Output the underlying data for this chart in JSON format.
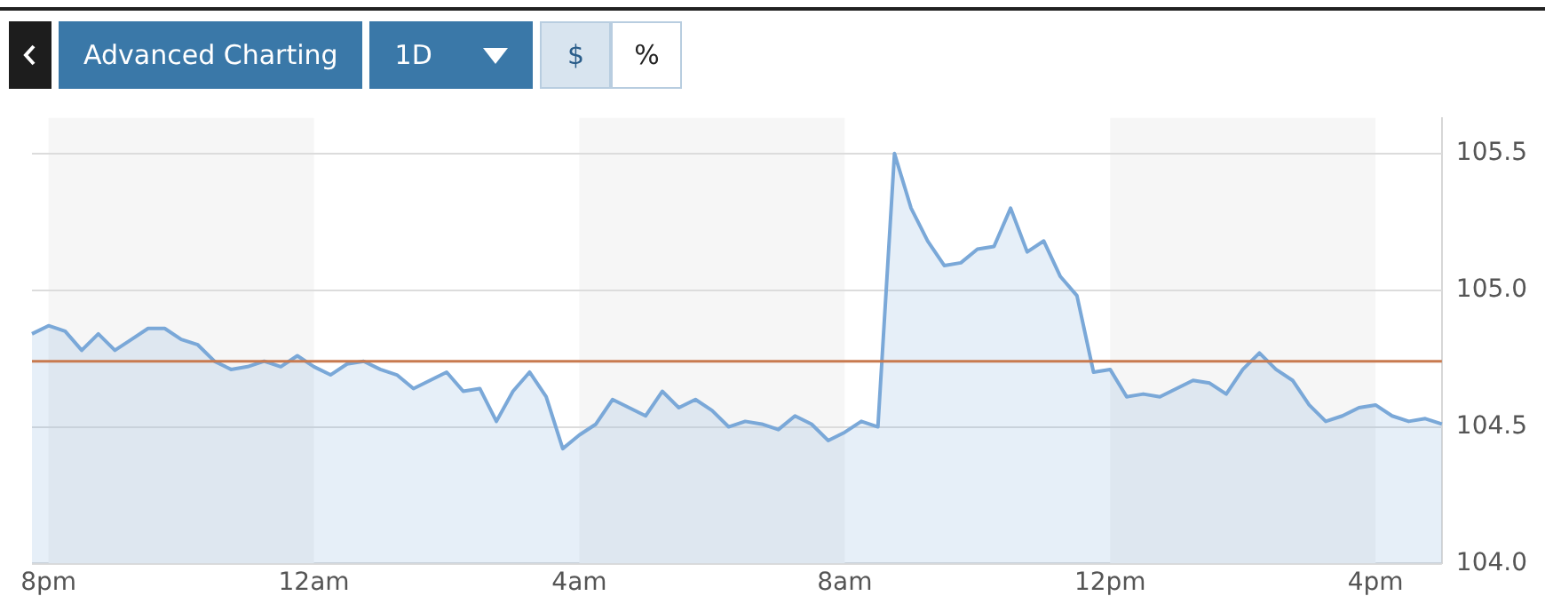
{
  "chart_data": {
    "type": "area",
    "annotations": [
      "Advanced Charting",
      "1D",
      "$",
      "%"
    ],
    "categories": [
      null,
      "8pm",
      null,
      null,
      null,
      null,
      null,
      null,
      null,
      null,
      null,
      null,
      null,
      null,
      null,
      null,
      null,
      "12am",
      null,
      null,
      null,
      null,
      null,
      null,
      null,
      null,
      null,
      null,
      null,
      null,
      null,
      null,
      null,
      "4am",
      null,
      null,
      null,
      null,
      null,
      null,
      null,
      null,
      null,
      null,
      null,
      null,
      null,
      null,
      null,
      "8am",
      null,
      null,
      null,
      null,
      null,
      null,
      null,
      null,
      null,
      null,
      null,
      null,
      null,
      null,
      null,
      "12pm",
      null,
      null,
      null,
      null,
      null,
      null,
      null,
      null,
      null,
      null,
      null,
      null,
      null,
      null,
      null,
      "4pm",
      null,
      null,
      null,
      null
    ],
    "series": [
      {
        "color": "#7aa8d8",
        "values": [
          104.84,
          104.87,
          104.85,
          104.78,
          104.84,
          104.78,
          104.82,
          104.86,
          104.86,
          104.82,
          104.8,
          104.74,
          104.71,
          104.72,
          104.74,
          104.72,
          104.76,
          104.72,
          104.69,
          104.73,
          104.74,
          104.71,
          104.69,
          104.64,
          104.67,
          104.7,
          104.63,
          104.64,
          104.52,
          104.63,
          104.7,
          104.61,
          104.42,
          104.47,
          104.51,
          104.6,
          104.57,
          104.54,
          104.63,
          104.57,
          104.6,
          104.56,
          104.5,
          104.52,
          104.51,
          104.49,
          104.54,
          104.51,
          104.45,
          104.48,
          104.52,
          104.5,
          105.5,
          105.3,
          105.18,
          105.09,
          105.1,
          105.15,
          105.16,
          105.3,
          105.14,
          105.18,
          105.05,
          104.98,
          104.7,
          104.71,
          104.61,
          104.62,
          104.61,
          104.64,
          104.67,
          104.66,
          104.62,
          104.71,
          104.77,
          104.71,
          104.67,
          104.58,
          104.52,
          104.54,
          104.57,
          104.58,
          104.54,
          104.52,
          104.53,
          104.51
        ]
      }
    ],
    "ylim": [
      104.0,
      105.63
    ],
    "yticks": [
      {
        "value": 104,
        "label": "104.0"
      },
      {
        "value": 104.5,
        "label": "104.5"
      },
      {
        "value": 105,
        "label": "105.0"
      },
      {
        "value": 105.5,
        "label": "105.5"
      }
    ],
    "ref_lines": [
      {
        "axis": "y",
        "value": 104.74,
        "color": "#c87a4f"
      }
    ],
    "bands": [
      {
        "axis": "x",
        "from": "8pm",
        "to": "12am",
        "color": "#f6f6f6"
      },
      {
        "axis": "x",
        "from": "4am",
        "to": "8am",
        "color": "#f6f6f6"
      },
      {
        "axis": "x",
        "from": "12pm",
        "to": "4pm",
        "color": "#f6f6f6"
      }
    ],
    "grid": "y",
    "legend": false,
    "marker": "none",
    "line_style": "solid"
  }
}
